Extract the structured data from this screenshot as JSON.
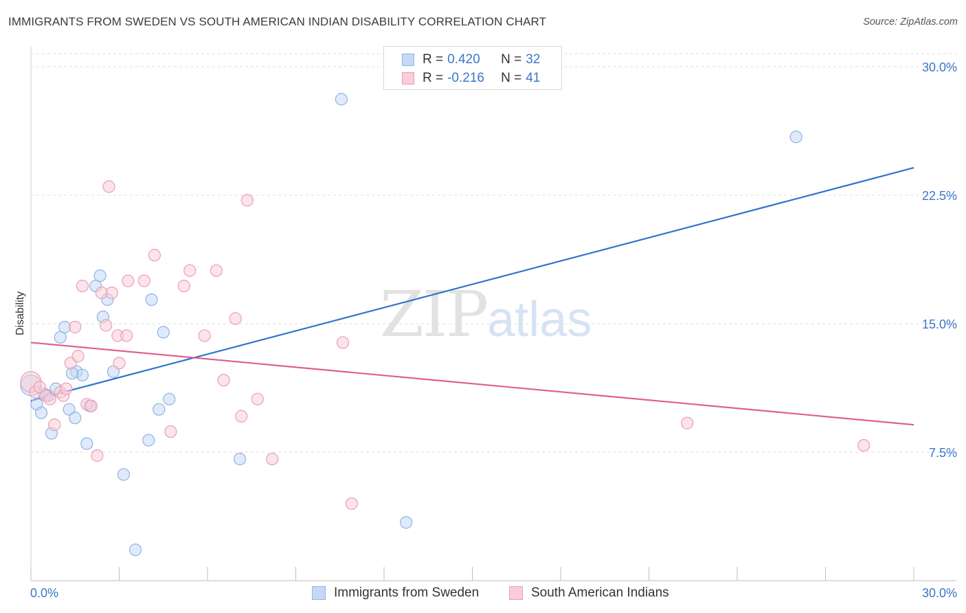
{
  "header": {
    "title": "IMMIGRANTS FROM SWEDEN VS SOUTH AMERICAN INDIAN DISABILITY CORRELATION CHART",
    "source": "Source: ZipAtlas.com"
  },
  "watermark": {
    "zip": "ZIP",
    "atlas": "atlas"
  },
  "legend": {
    "rows": [
      {
        "r_label": "R =",
        "r_value": "0.420",
        "n_label": "N =",
        "n_value": "32"
      },
      {
        "r_label": "R =",
        "r_value": "-0.216",
        "n_label": "N =",
        "n_value": "41"
      }
    ]
  },
  "bottom_legend": {
    "series1": "Immigrants from Sweden",
    "series2": "South American Indians"
  },
  "colors": {
    "blue_fill": "#c5d9f5",
    "blue_stroke": "#8fb3e3",
    "blue_line": "#2f74cc",
    "pink_fill": "#f9cdd9",
    "pink_stroke": "#eb9db4",
    "pink_line": "#e0608b",
    "tick_text": "#3b76c8"
  },
  "chart_data": {
    "type": "scatter",
    "title": "IMMIGRANTS FROM SWEDEN VS SOUTH AMERICAN INDIAN DISABILITY CORRELATION CHART",
    "xlabel": "",
    "ylabel": "Disability",
    "xlim": [
      0,
      30
    ],
    "ylim": [
      0,
      30.5
    ],
    "x_tick_labels": [
      "0.0%",
      "30.0%"
    ],
    "y_ticks": [
      {
        "value": 7.5,
        "label": "7.5%"
      },
      {
        "value": 15.0,
        "label": "15.0%"
      },
      {
        "value": 22.5,
        "label": "22.5%"
      },
      {
        "value": 30.0,
        "label": "30.0%"
      }
    ],
    "series": [
      {
        "name": "Immigrants from Sweden",
        "r": 0.42,
        "n": 32,
        "trend": {
          "x": [
            0,
            30
          ],
          "y": [
            10.5,
            24.1
          ]
        },
        "points": [
          [
            0.0,
            11.4
          ],
          [
            0.2,
            10.3
          ],
          [
            0.35,
            9.8
          ],
          [
            0.45,
            10.9
          ],
          [
            0.6,
            10.8
          ],
          [
            0.7,
            8.6
          ],
          [
            0.85,
            11.2
          ],
          [
            1.0,
            14.2
          ],
          [
            1.15,
            14.8
          ],
          [
            1.3,
            10.0
          ],
          [
            1.5,
            9.5
          ],
          [
            1.55,
            12.2
          ],
          [
            1.75,
            12.0
          ],
          [
            1.9,
            8.0
          ],
          [
            2.0,
            10.2
          ],
          [
            2.2,
            17.2
          ],
          [
            2.35,
            17.8
          ],
          [
            2.45,
            15.4
          ],
          [
            2.6,
            16.4
          ],
          [
            2.8,
            12.2
          ],
          [
            3.15,
            6.2
          ],
          [
            3.55,
            1.8
          ],
          [
            4.0,
            8.2
          ],
          [
            4.1,
            16.4
          ],
          [
            4.35,
            10.0
          ],
          [
            4.5,
            14.5
          ],
          [
            4.7,
            10.6
          ],
          [
            1.4,
            12.1
          ],
          [
            7.1,
            7.1
          ],
          [
            10.55,
            28.1
          ],
          [
            12.75,
            3.4
          ],
          [
            26.0,
            25.9
          ]
        ]
      },
      {
        "name": "South American Indians",
        "r": -0.216,
        "n": 41,
        "trend": {
          "x": [
            0,
            30
          ],
          "y": [
            13.9,
            9.1
          ]
        },
        "points": [
          [
            0.0,
            11.6
          ],
          [
            0.15,
            11.0
          ],
          [
            0.3,
            11.3
          ],
          [
            0.5,
            10.8
          ],
          [
            0.65,
            10.6
          ],
          [
            0.8,
            9.1
          ],
          [
            1.0,
            11.0
          ],
          [
            1.1,
            10.8
          ],
          [
            1.2,
            11.2
          ],
          [
            1.35,
            12.7
          ],
          [
            1.5,
            14.8
          ],
          [
            1.6,
            13.1
          ],
          [
            1.75,
            17.2
          ],
          [
            1.9,
            10.3
          ],
          [
            2.05,
            10.2
          ],
          [
            2.25,
            7.3
          ],
          [
            2.4,
            16.8
          ],
          [
            2.55,
            14.9
          ],
          [
            2.65,
            23.0
          ],
          [
            2.75,
            16.8
          ],
          [
            2.95,
            14.3
          ],
          [
            3.0,
            12.7
          ],
          [
            3.25,
            14.3
          ],
          [
            3.3,
            17.5
          ],
          [
            3.85,
            17.5
          ],
          [
            4.2,
            19.0
          ],
          [
            4.75,
            8.7
          ],
          [
            5.2,
            17.2
          ],
          [
            5.4,
            18.1
          ],
          [
            5.9,
            14.3
          ],
          [
            6.3,
            18.1
          ],
          [
            6.55,
            11.7
          ],
          [
            6.95,
            15.3
          ],
          [
            7.15,
            9.6
          ],
          [
            7.35,
            22.2
          ],
          [
            7.7,
            10.6
          ],
          [
            8.2,
            7.1
          ],
          [
            10.6,
            13.9
          ],
          [
            10.9,
            4.5
          ],
          [
            22.3,
            9.2
          ],
          [
            28.3,
            7.9
          ]
        ]
      }
    ]
  }
}
